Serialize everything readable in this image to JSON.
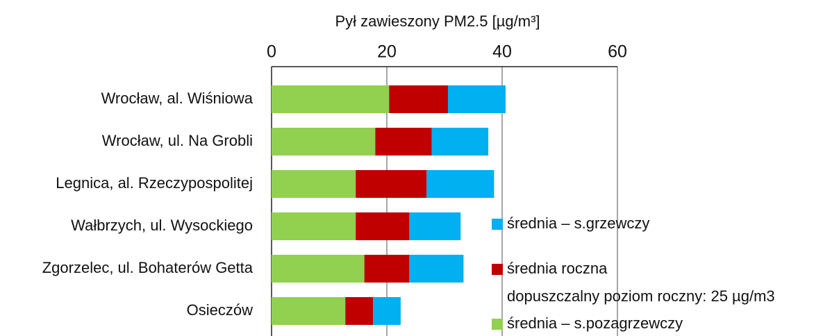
{
  "chart_data": {
    "type": "stacked-bar-horizontal",
    "title": "Pył zawieszony PM2.5 [µg/m³]",
    "categories": [
      "Wrocław, al. Wiśniowa",
      "Wrocław, ul. Na Grobli",
      "Legnica, al. Rzeczypospolitej",
      "Wałbrzych, ul. Wysockiego",
      "Zgorzelec, ul. Bohaterów Getta",
      "Osieczów"
    ],
    "series": [
      {
        "name": "średnia – s.pozagrzewczy",
        "color": "#92d050",
        "values": [
          20.4,
          18.0,
          14.6,
          14.6,
          16.1,
          12.8
        ]
      },
      {
        "name": "średnia roczna",
        "color": "#c00000",
        "values": [
          10.2,
          9.8,
          12.3,
          9.3,
          7.8,
          4.8
        ]
      },
      {
        "name": "średnia – s.grzewczy",
        "color": "#00b0f0",
        "values": [
          10.0,
          9.8,
          11.7,
          8.9,
          9.4,
          4.8
        ]
      }
    ],
    "annotation": "dopuszczalny poziom roczny: 25 µg/m3",
    "xlim": [
      0,
      60
    ],
    "xticks": [
      0,
      20,
      40,
      60
    ],
    "grid": true
  }
}
